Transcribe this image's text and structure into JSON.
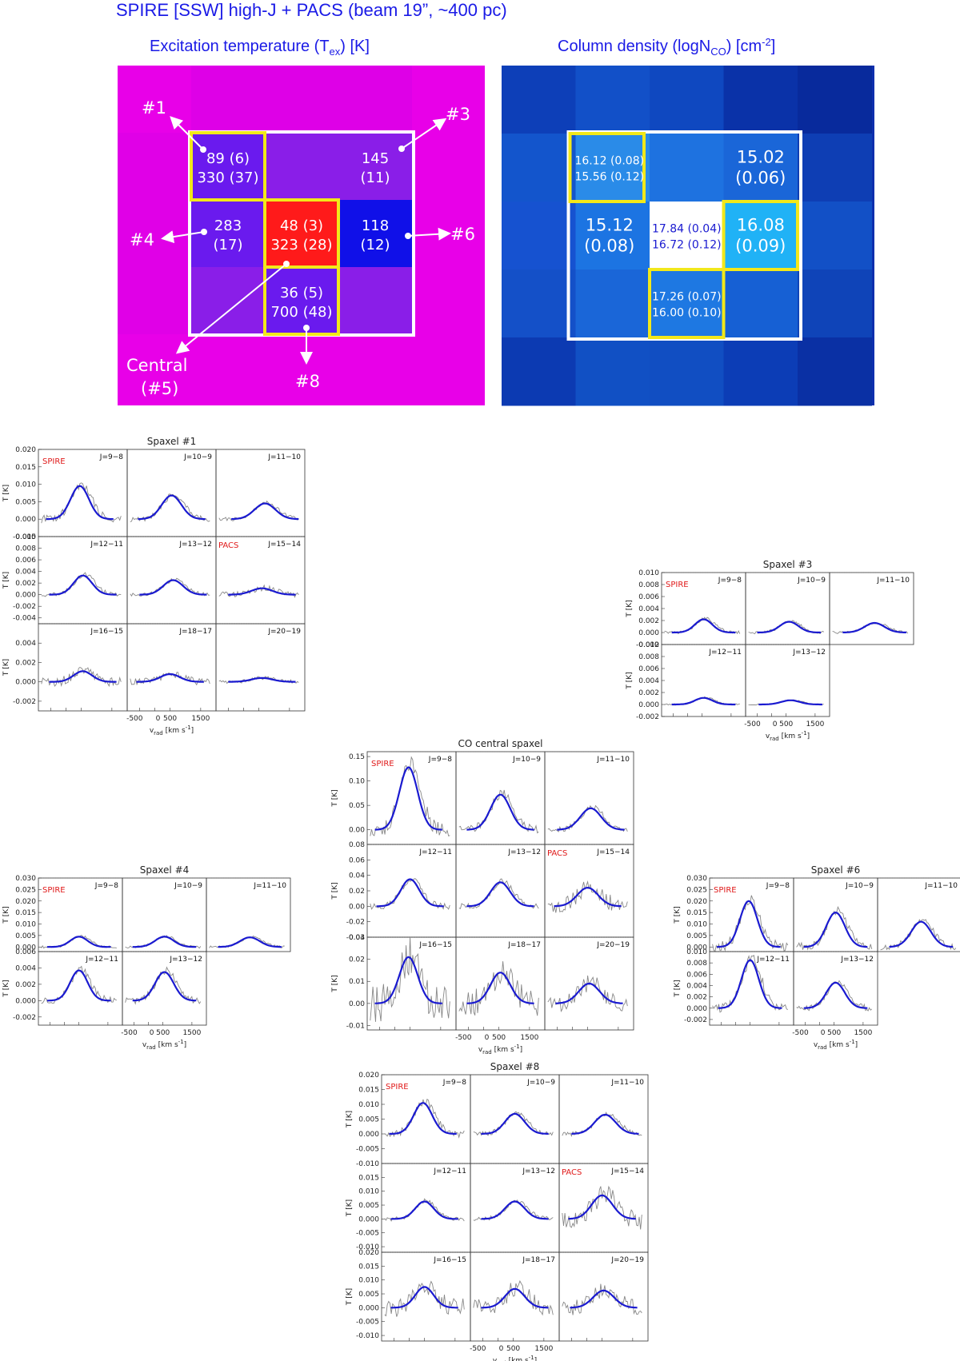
{
  "header": {
    "title": "SPIRE [SSW] high-J + PACS (beam 19”, ~400 pc)",
    "tex_title": "Excitation temperature (T",
    "tex_sub": "ex",
    "tex_tail": ") [K]",
    "n_title": "Column density (logN",
    "n_sub": "CO",
    "n_tail": ") [cm",
    "n_sup": "-2",
    "n_end": "]"
  },
  "colors": {
    "title_blue": "#1a1ae6",
    "magenta": "#e800e8",
    "purple": "#8a1ee8",
    "violet": "#6a1aee",
    "red": "#ff1a1a",
    "blue": "#1010e8",
    "highlight": "#f2e81a",
    "fit_blue": "#1a1ad0",
    "label_red": "#e01a1a"
  },
  "tex_map": {
    "cells": [
      {
        "id": "1",
        "line1": "89 (6)",
        "line2": "330 (37)"
      },
      {
        "id": "3",
        "line1": "145",
        "line2": "(11)"
      },
      {
        "id": "4",
        "line1": "283",
        "line2": "(17)"
      },
      {
        "id": "5",
        "line1": "48 (3)",
        "line2": "323 (28)"
      },
      {
        "id": "6",
        "line1": "118",
        "line2": "(12)"
      },
      {
        "id": "8",
        "line1": "36 (5)",
        "line2": "700 (48)"
      }
    ],
    "labels": {
      "s1": "#1",
      "s3": "#3",
      "s4": "#4",
      "s6": "#6",
      "s8": "#8",
      "central": "Central",
      "central2": "(#5)"
    }
  },
  "n_map": {
    "cells": [
      {
        "id": "1",
        "line1": "16.12 (0.08)",
        "line2": "15.56 (0.12)"
      },
      {
        "id": "3",
        "line1": "15.02",
        "line2": "(0.06)"
      },
      {
        "id": "4",
        "line1": "15.12",
        "line2": "(0.08)"
      },
      {
        "id": "5",
        "line1": "17.84 (0.04)",
        "line2": "16.72 (0.12)"
      },
      {
        "id": "6",
        "line1": "16.08",
        "line2": "(0.09)"
      },
      {
        "id": "8",
        "line1": "17.26 (0.07)",
        "line2": "16.00 (0.10)"
      }
    ]
  },
  "axis_text": {
    "ylabel": "T [K]",
    "xlabel": "v",
    "xsub": "rad",
    "xunit": " [km s",
    "xsup": "-1",
    "xend": "]",
    "xticks": [
      "-500",
      "0",
      "500",
      "1500"
    ],
    "spire": "SPIRE",
    "pacs": "PACS"
  },
  "chart_data": [
    {
      "type": "line",
      "title": "Spaxel #1",
      "layout": "3x3",
      "pacs_index": 5,
      "panels": [
        "J=9−8",
        "J=10−9",
        "J=11−10",
        "J=12−11",
        "J=13−12",
        "J=15−14",
        "J=16−15",
        "J=18−17",
        "J=20−19"
      ],
      "rows": [
        {
          "ylim": [
            -0.005,
            0.02
          ],
          "yticks": [
            "0.020",
            "0.015",
            "0.010",
            "0.005",
            "0.000",
            "-0.005"
          ]
        },
        {
          "ylim": [
            -0.005,
            0.01
          ],
          "yticks": [
            "0.010",
            "0.008",
            "0.006",
            "0.004",
            "0.002",
            "0.000",
            "-0.002",
            "-0.004"
          ]
        },
        {
          "ylim": [
            -0.003,
            0.006
          ],
          "yticks": [
            "0.004",
            "0.002",
            "0.000",
            "-0.002"
          ]
        }
      ],
      "peaks": [
        0.0095,
        0.0068,
        0.0045,
        0.0033,
        0.0025,
        0.0011,
        0.0011,
        0.0008,
        0.0004
      ],
      "centers": [
        450,
        550,
        700,
        550,
        600,
        600,
        550,
        500,
        600
      ]
    },
    {
      "type": "line",
      "title": "Spaxel #3",
      "layout": "3x2",
      "pacs_index": -1,
      "panels": [
        "J=9−8",
        "J=10−9",
        "J=11−10",
        "J=12−11",
        "J=13−12"
      ],
      "rows": [
        {
          "ylim": [
            -0.002,
            0.01
          ],
          "yticks": [
            "0.010",
            "0.008",
            "0.006",
            "0.004",
            "0.002",
            "0.000",
            "-0.002"
          ]
        },
        {
          "ylim": [
            -0.002,
            0.01
          ],
          "yticks": [
            "0.010",
            "0.008",
            "0.006",
            "0.004",
            "0.002",
            "0.000",
            "-0.002"
          ]
        }
      ],
      "peaks": [
        0.0022,
        0.0018,
        0.0016,
        0.0011,
        0.0007
      ],
      "centers": [
        550,
        600,
        650,
        550,
        650
      ]
    },
    {
      "type": "line",
      "title": "CO central spaxel",
      "layout": "3x3",
      "pacs_index": 5,
      "panels": [
        "J=9−8",
        "J=10−9",
        "J=11−10",
        "J=12−11",
        "J=13−12",
        "J=15−14",
        "J=16−15",
        "J=18−17",
        "J=20−19"
      ],
      "rows": [
        {
          "ylim": [
            -0.03,
            0.16
          ],
          "yticks": [
            "0.15",
            "0.10",
            "0.05",
            "0.00"
          ]
        },
        {
          "ylim": [
            -0.04,
            0.08
          ],
          "yticks": [
            "0.08",
            "0.06",
            "0.04",
            "0.02",
            "0.00",
            "-0.02",
            "-0.04"
          ]
        },
        {
          "ylim": [
            -0.012,
            0.03
          ],
          "yticks": [
            "0.03",
            "0.02",
            "0.01",
            "0.00",
            "-0.01"
          ]
        }
      ],
      "peaks": [
        0.128,
        0.072,
        0.044,
        0.035,
        0.031,
        0.024,
        0.021,
        0.014,
        0.009
      ],
      "centers": [
        450,
        550,
        600,
        500,
        550,
        500,
        450,
        550,
        550
      ]
    },
    {
      "type": "line",
      "title": "Spaxel #4",
      "layout": "3x2",
      "pacs_index": -1,
      "panels": [
        "J=9−8",
        "J=10−9",
        "J=11−10",
        "J=12−11",
        "J=13−12"
      ],
      "rows": [
        {
          "ylim": [
            -0.002,
            0.03
          ],
          "yticks": [
            "0.030",
            "0.025",
            "0.020",
            "0.015",
            "0.010",
            "0.005",
            "0.000"
          ]
        },
        {
          "ylim": [
            -0.003,
            0.006
          ],
          "yticks": [
            "0.006",
            "0.004",
            "0.002",
            "0.000",
            "-0.002"
          ]
        }
      ],
      "peaks": [
        0.0045,
        0.0045,
        0.0042,
        0.0037,
        0.0035
      ],
      "centers": [
        500,
        550,
        600,
        500,
        550
      ]
    },
    {
      "type": "line",
      "title": "Spaxel #6",
      "layout": "3x2",
      "pacs_index": -1,
      "panels": [
        "J=9−8",
        "J=10−9",
        "J=11−10",
        "J=12−11",
        "J=13−12"
      ],
      "rows": [
        {
          "ylim": [
            -0.002,
            0.03
          ],
          "yticks": [
            "0.030",
            "0.025",
            "0.020",
            "0.015",
            "0.010",
            "0.005",
            "0.000"
          ]
        },
        {
          "ylim": [
            -0.003,
            0.01
          ],
          "yticks": [
            "0.010",
            "0.008",
            "0.006",
            "0.004",
            "0.002",
            "0.000",
            "-0.002"
          ]
        }
      ],
      "peaks": [
        0.02,
        0.015,
        0.011,
        0.0085,
        0.0045
      ],
      "centers": [
        450,
        550,
        600,
        500,
        550
      ]
    },
    {
      "type": "line",
      "title": "Spaxel #8",
      "layout": "3x3",
      "pacs_index": 5,
      "panels": [
        "J=9−8",
        "J=10−9",
        "J=11−10",
        "J=12−11",
        "J=13−12",
        "J=15−14",
        "J=16−15",
        "J=18−17",
        "J=20−19"
      ],
      "rows": [
        {
          "ylim": [
            -0.01,
            0.02
          ],
          "yticks": [
            "0.020",
            "0.015",
            "0.010",
            "0.005",
            "0.000",
            "-0.005",
            "-0.010"
          ]
        },
        {
          "ylim": [
            -0.012,
            0.02
          ],
          "yticks": [
            "0.015",
            "0.010",
            "0.005",
            "0.000",
            "-0.005",
            "-0.010"
          ]
        },
        {
          "ylim": [
            -0.012,
            0.02
          ],
          "yticks": [
            "0.020",
            "0.015",
            "0.010",
            "0.005",
            "0.000",
            "-0.005",
            "-0.010"
          ]
        }
      ],
      "peaks": [
        0.0105,
        0.0068,
        0.0065,
        0.0063,
        0.0063,
        0.0085,
        0.0075,
        0.0068,
        0.0062
      ],
      "centers": [
        450,
        550,
        600,
        500,
        550,
        500,
        500,
        550,
        550
      ]
    }
  ]
}
